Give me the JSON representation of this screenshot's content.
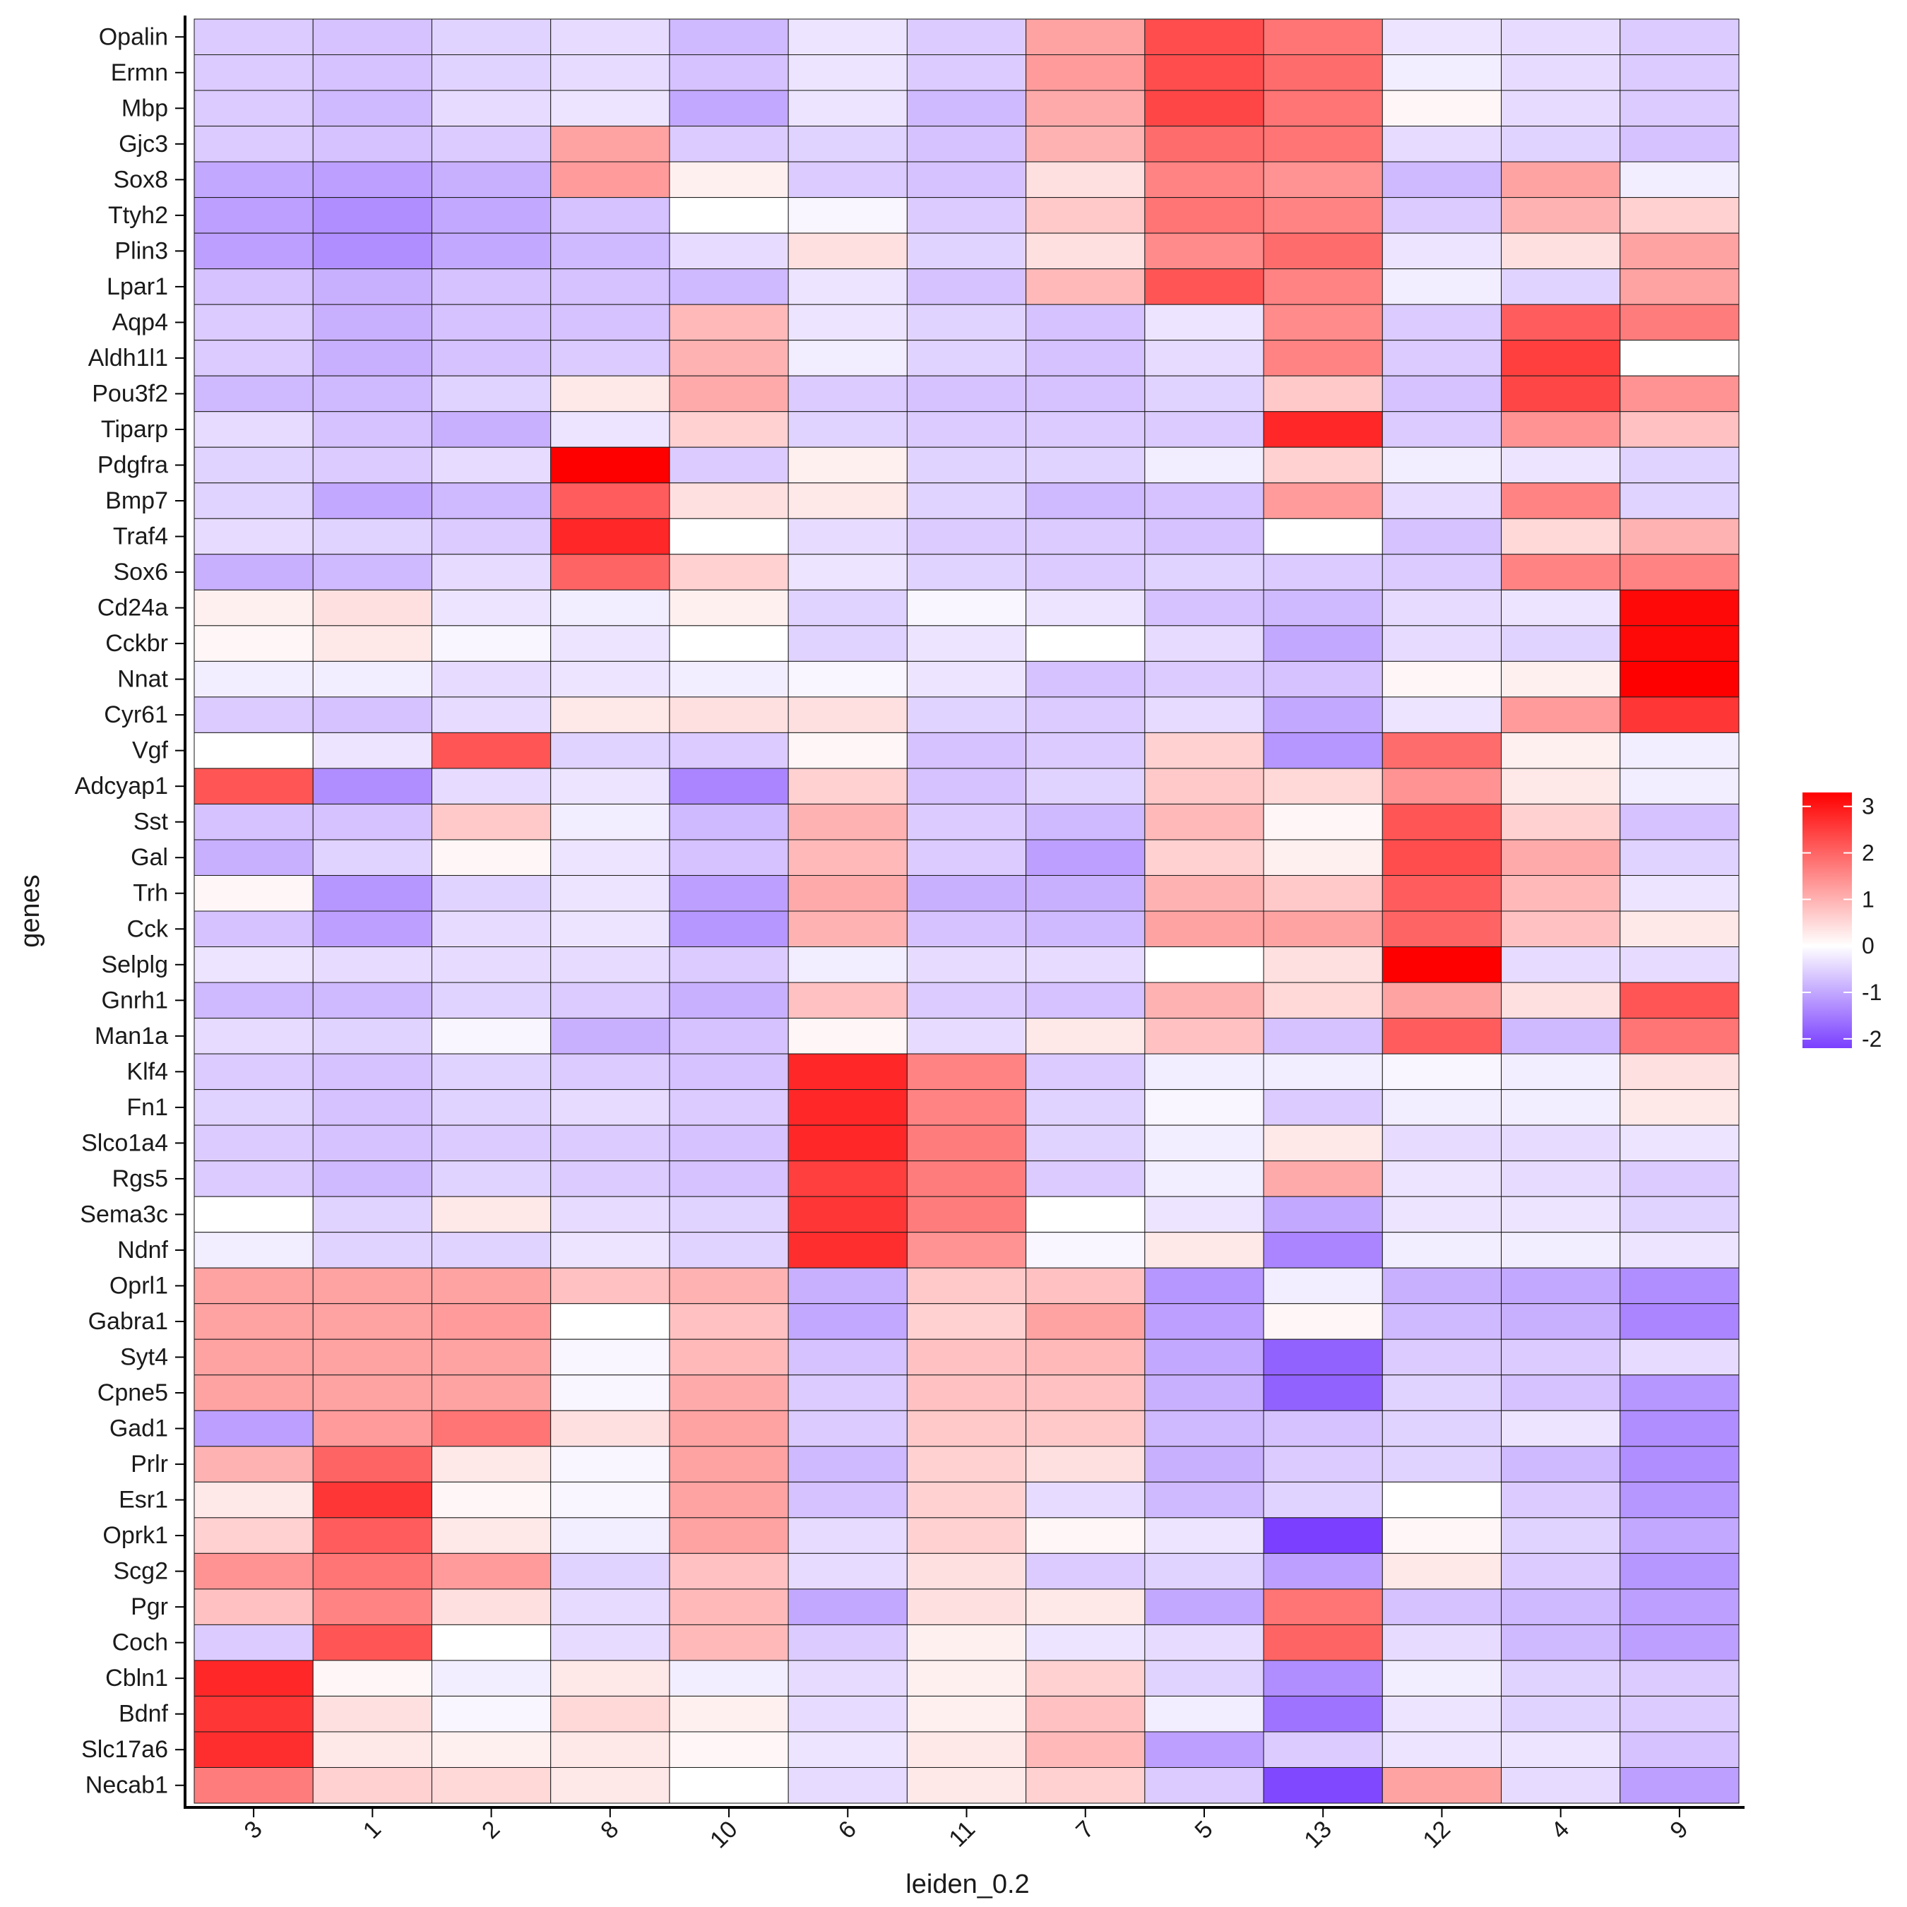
{
  "chart_data": {
    "type": "heatmap",
    "xlabel": "leiden_0.2",
    "ylabel": "genes",
    "x": [
      "3",
      "1",
      "2",
      "8",
      "10",
      "6",
      "11",
      "7",
      "5",
      "13",
      "12",
      "4",
      "9"
    ],
    "y": [
      "Opalin",
      "Ermn",
      "Mbp",
      "Gjc3",
      "Sox8",
      "Ttyh2",
      "Plin3",
      "Lpar1",
      "Aqp4",
      "Aldh1l1",
      "Pou3f2",
      "Tiparp",
      "Pdgfra",
      "Bmp7",
      "Traf4",
      "Sox6",
      "Cd24a",
      "Cckbr",
      "Nnat",
      "Cyr61",
      "Vgf",
      "Adcyap1",
      "Sst",
      "Gal",
      "Trh",
      "Cck",
      "Selplg",
      "Gnrh1",
      "Man1a",
      "Klf4",
      "Fn1",
      "Slco1a4",
      "Rgs5",
      "Sema3c",
      "Ndnf",
      "Oprl1",
      "Gabra1",
      "Syt4",
      "Cpne5",
      "Gad1",
      "Prlr",
      "Esr1",
      "Oprk1",
      "Scg2",
      "Pgr",
      "Coch",
      "Cbln1",
      "Bdnf",
      "Slc17a6",
      "Necab1"
    ],
    "values": [
      [
        -0.6,
        -0.7,
        -0.5,
        -0.4,
        -0.8,
        -0.3,
        -0.6,
        1.2,
        2.3,
        1.8,
        -0.3,
        -0.4,
        -0.6
      ],
      [
        -0.6,
        -0.7,
        -0.5,
        -0.4,
        -0.7,
        -0.3,
        -0.6,
        1.3,
        2.3,
        1.9,
        -0.2,
        -0.4,
        -0.6
      ],
      [
        -0.6,
        -0.8,
        -0.4,
        -0.3,
        -1.0,
        -0.3,
        -0.8,
        1.1,
        2.4,
        1.8,
        0.1,
        -0.4,
        -0.6
      ],
      [
        -0.6,
        -0.7,
        -0.6,
        1.2,
        -0.6,
        -0.5,
        -0.7,
        1.0,
        1.9,
        1.8,
        -0.4,
        -0.5,
        -0.7
      ],
      [
        -1.0,
        -1.1,
        -0.9,
        1.3,
        0.2,
        -0.6,
        -0.7,
        0.4,
        1.6,
        1.4,
        -0.8,
        1.2,
        -0.2
      ],
      [
        -1.1,
        -1.3,
        -1.0,
        -0.7,
        0.0,
        -0.1,
        -0.6,
        0.7,
        1.8,
        1.6,
        -0.6,
        1.0,
        0.6
      ],
      [
        -1.1,
        -1.3,
        -1.0,
        -0.8,
        -0.4,
        0.4,
        -0.5,
        0.4,
        1.5,
        1.9,
        -0.3,
        0.4,
        1.2
      ],
      [
        -0.7,
        -0.9,
        -0.7,
        -0.7,
        -0.8,
        -0.3,
        -0.7,
        0.9,
        2.2,
        1.6,
        -0.2,
        -0.5,
        1.2
      ],
      [
        -0.6,
        -0.9,
        -0.7,
        -0.7,
        0.9,
        -0.3,
        -0.5,
        -0.7,
        -0.3,
        1.5,
        -0.6,
        2.1,
        1.7
      ],
      [
        -0.6,
        -0.9,
        -0.7,
        -0.6,
        1.0,
        -0.2,
        -0.5,
        -0.7,
        -0.4,
        1.6,
        -0.6,
        2.5,
        0.0
      ],
      [
        -0.8,
        -0.8,
        -0.5,
        0.3,
        1.1,
        -0.6,
        -0.7,
        -0.7,
        -0.5,
        0.7,
        -0.7,
        2.4,
        1.4
      ],
      [
        -0.4,
        -0.7,
        -0.9,
        -0.3,
        0.6,
        -0.5,
        -0.6,
        -0.6,
        -0.6,
        2.8,
        -0.6,
        1.4,
        0.8
      ],
      [
        -0.5,
        -0.6,
        -0.4,
        3.3,
        -0.6,
        0.2,
        -0.5,
        -0.5,
        -0.2,
        0.6,
        -0.2,
        -0.3,
        -0.5
      ],
      [
        -0.5,
        -1.0,
        -0.8,
        2.1,
        0.4,
        0.3,
        -0.5,
        -0.8,
        -0.7,
        1.3,
        -0.4,
        1.6,
        -0.5
      ],
      [
        -0.4,
        -0.5,
        -0.6,
        2.8,
        0.0,
        -0.4,
        -0.6,
        -0.6,
        -0.7,
        0.0,
        -0.7,
        0.5,
        1.0
      ],
      [
        -0.9,
        -0.8,
        -0.4,
        2.0,
        0.6,
        -0.3,
        -0.5,
        -0.6,
        -0.5,
        -0.6,
        -0.6,
        1.6,
        1.6
      ],
      [
        0.2,
        0.4,
        -0.3,
        -0.2,
        0.2,
        -0.5,
        -0.1,
        -0.3,
        -0.7,
        -0.8,
        -0.4,
        -0.3,
        3.2
      ],
      [
        0.1,
        0.3,
        -0.1,
        -0.3,
        0.0,
        -0.5,
        -0.3,
        0.0,
        -0.4,
        -1.0,
        -0.4,
        -0.5,
        3.2
      ],
      [
        -0.2,
        -0.2,
        -0.4,
        -0.3,
        -0.2,
        -0.1,
        -0.3,
        -0.7,
        -0.6,
        -0.7,
        0.1,
        0.2,
        3.3
      ],
      [
        -0.6,
        -0.7,
        -0.4,
        0.3,
        0.4,
        0.4,
        -0.5,
        -0.6,
        -0.4,
        -1.0,
        -0.3,
        1.3,
        2.6
      ],
      [
        0.0,
        -0.3,
        2.2,
        -0.5,
        -0.6,
        0.1,
        -0.7,
        -0.6,
        0.6,
        -1.2,
        1.9,
        0.2,
        -0.2
      ],
      [
        2.2,
        -1.3,
        -0.4,
        -0.3,
        -1.4,
        0.6,
        -0.7,
        -0.5,
        0.7,
        0.5,
        1.4,
        0.3,
        -0.2
      ],
      [
        -0.7,
        -0.7,
        0.7,
        -0.2,
        -0.8,
        1.0,
        -0.6,
        -0.8,
        0.9,
        0.1,
        2.2,
        0.6,
        -0.7
      ],
      [
        -0.9,
        -0.5,
        0.1,
        -0.3,
        -0.7,
        0.9,
        -0.6,
        -1.1,
        0.6,
        0.2,
        2.3,
        1.1,
        -0.5
      ],
      [
        0.1,
        -1.2,
        -0.5,
        -0.3,
        -1.1,
        1.1,
        -0.9,
        -0.9,
        1.0,
        0.7,
        2.1,
        0.9,
        -0.3
      ],
      [
        -0.7,
        -1.1,
        -0.4,
        -0.3,
        -1.2,
        1.0,
        -0.7,
        -0.8,
        1.2,
        1.2,
        2.0,
        0.8,
        0.3
      ],
      [
        -0.3,
        -0.4,
        -0.4,
        -0.4,
        -0.6,
        -0.2,
        -0.4,
        -0.4,
        0.0,
        0.4,
        3.3,
        -0.4,
        -0.4
      ],
      [
        -0.8,
        -0.8,
        -0.5,
        -0.6,
        -0.9,
        0.8,
        -0.6,
        -0.7,
        1.0,
        0.5,
        1.2,
        0.4,
        2.2
      ],
      [
        -0.4,
        -0.5,
        -0.1,
        -0.9,
        -0.7,
        0.1,
        -0.4,
        0.3,
        0.8,
        -0.7,
        2.1,
        -0.8,
        1.8
      ],
      [
        -0.6,
        -0.7,
        -0.5,
        -0.6,
        -0.7,
        2.8,
        1.6,
        -0.6,
        -0.2,
        -0.2,
        -0.1,
        -0.2,
        0.4
      ],
      [
        -0.5,
        -0.7,
        -0.5,
        -0.4,
        -0.6,
        2.8,
        1.6,
        -0.5,
        -0.1,
        -0.6,
        -0.2,
        -0.2,
        0.3
      ],
      [
        -0.6,
        -0.7,
        -0.6,
        -0.6,
        -0.7,
        2.8,
        1.7,
        -0.5,
        -0.2,
        0.3,
        -0.4,
        -0.4,
        -0.3
      ],
      [
        -0.6,
        -0.8,
        -0.5,
        -0.6,
        -0.7,
        2.5,
        1.7,
        -0.6,
        -0.2,
        1.1,
        -0.3,
        -0.4,
        -0.6
      ],
      [
        0.0,
        -0.5,
        0.3,
        -0.4,
        -0.5,
        2.6,
        1.7,
        0.0,
        -0.3,
        -1.0,
        -0.3,
        -0.3,
        -0.5
      ],
      [
        -0.2,
        -0.5,
        -0.5,
        -0.3,
        -0.5,
        2.7,
        1.4,
        -0.1,
        0.3,
        -1.4,
        -0.2,
        -0.2,
        -0.3
      ],
      [
        1.2,
        1.2,
        1.2,
        0.8,
        1.0,
        -0.9,
        0.7,
        0.8,
        -1.2,
        -0.2,
        -0.9,
        -1.0,
        -1.3
      ],
      [
        1.2,
        1.2,
        1.3,
        0.0,
        0.8,
        -1.0,
        0.6,
        1.2,
        -1.1,
        0.1,
        -0.8,
        -0.9,
        -1.4
      ],
      [
        1.2,
        1.2,
        1.2,
        -0.1,
        0.9,
        -0.7,
        0.8,
        0.9,
        -1.0,
        -1.8,
        -0.6,
        -0.6,
        -0.4
      ],
      [
        1.2,
        1.2,
        1.2,
        -0.1,
        1.1,
        -0.6,
        0.8,
        0.8,
        -0.9,
        -1.8,
        -0.5,
        -0.7,
        -1.2
      ],
      [
        -1.1,
        1.3,
        1.8,
        0.4,
        1.2,
        -0.6,
        0.7,
        0.7,
        -0.8,
        -0.7,
        -0.5,
        -0.3,
        -1.3
      ],
      [
        1.0,
        2.0,
        0.3,
        -0.1,
        1.2,
        -0.8,
        0.6,
        0.4,
        -0.9,
        -0.6,
        -0.5,
        -0.8,
        -1.3
      ],
      [
        0.3,
        2.6,
        0.1,
        -0.1,
        1.2,
        -0.7,
        0.6,
        -0.4,
        -0.8,
        -0.5,
        0.0,
        -0.6,
        -1.2
      ],
      [
        0.6,
        2.1,
        0.3,
        -0.2,
        1.2,
        -0.4,
        0.6,
        0.1,
        -0.3,
        -2.2,
        0.1,
        -0.5,
        -1.0
      ],
      [
        1.4,
        1.8,
        1.3,
        -0.5,
        0.8,
        -0.4,
        0.4,
        -0.6,
        -0.5,
        -1.1,
        0.3,
        -0.6,
        -1.2
      ],
      [
        0.8,
        1.6,
        0.4,
        -0.4,
        0.9,
        -1.0,
        0.4,
        0.3,
        -1.0,
        1.8,
        -0.7,
        -0.8,
        -1.1
      ],
      [
        -0.6,
        2.2,
        0.0,
        -0.4,
        0.9,
        -0.6,
        0.2,
        -0.3,
        -0.4,
        2.0,
        -0.4,
        -0.8,
        -1.1
      ],
      [
        2.8,
        0.1,
        -0.2,
        0.3,
        -0.2,
        -0.4,
        0.2,
        0.6,
        -0.5,
        -1.3,
        -0.2,
        -0.5,
        -0.6
      ],
      [
        2.6,
        0.4,
        -0.1,
        0.5,
        0.2,
        -0.4,
        0.2,
        0.8,
        -0.2,
        -1.6,
        -0.3,
        -0.5,
        -0.6
      ],
      [
        2.7,
        0.3,
        0.2,
        0.3,
        0.1,
        -0.3,
        0.3,
        0.9,
        -1.1,
        -0.6,
        -0.3,
        -0.3,
        -0.7
      ],
      [
        1.7,
        0.6,
        0.5,
        0.3,
        0.0,
        -0.4,
        0.3,
        0.6,
        -0.6,
        -2.1,
        1.2,
        -0.4,
        -1.1
      ]
    ],
    "colorbar": {
      "ticks": [
        3,
        2,
        1,
        0,
        -1,
        -2
      ],
      "range": [
        -2.2,
        3.3
      ]
    },
    "colors": {
      "low": "#7A3FFF",
      "mid": "#FFFFFF",
      "high": "#FF0000"
    },
    "grid": true,
    "legend_position": "right"
  }
}
